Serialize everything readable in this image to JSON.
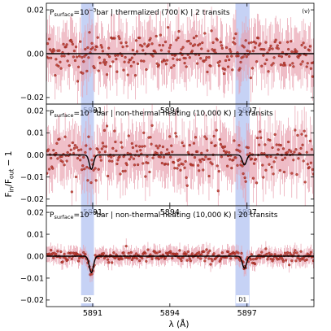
{
  "chart_data": {
    "type": "scatter",
    "panel_corner_label": "(v)",
    "ylabel": {
      "main": "F",
      "sub_in": "in",
      "slash": "/F",
      "sub_out": "out",
      "tail": " − 1"
    },
    "xlabel": "λ (Å)",
    "xlim": [
      5889.2,
      5899.6
    ],
    "xticks": [
      5891,
      5894,
      5897
    ],
    "xtick_labels": [
      "5891",
      "5894",
      "5897"
    ],
    "absorption_bands": [
      {
        "label": "D2",
        "range": [
          5890.55,
          5891.05
        ],
        "center": 5890.95
      },
      {
        "label": "D1",
        "range": [
          5896.55,
          5897.1
        ],
        "center": 5896.9
      }
    ],
    "colors": {
      "points": "#c0392b",
      "point_edge": "#7b1a1a",
      "errorbar": "#e8a0ae",
      "model": "#000000",
      "band": "#b3c3f2"
    },
    "panels": [
      {
        "title_parts": [
          "P",
          "surface",
          "=10",
          "−3",
          "bar | thermalized (700 K) | 2 transits"
        ],
        "ylim": [
          -0.023,
          0.023
        ],
        "yticks": [
          -0.02,
          0.0,
          0.02
        ],
        "ytick_labels": [
          "−0.02",
          "0.00",
          "0.02"
        ],
        "noise_sigma": 0.0048,
        "errorbar_halfwidth": 0.011,
        "model_depths": [
          0.0,
          0.0
        ],
        "show_corner_label": true,
        "show_band_labels": false
      },
      {
        "title_parts": [
          "P",
          "surface",
          "=10",
          "−6",
          "bar | non-thermal heating (10,000 K) | 2 transits"
        ],
        "ylim": [
          -0.023,
          0.023
        ],
        "yticks": [
          -0.02,
          -0.01,
          0.0,
          0.01,
          0.02
        ],
        "ytick_labels": [
          "−0.02",
          "−0.01",
          "0.00",
          "0.01",
          "0.02"
        ],
        "noise_sigma": 0.0048,
        "errorbar_halfwidth": 0.011,
        "model_depths": [
          0.0065,
          0.0045
        ],
        "show_corner_label": false,
        "show_band_labels": false
      },
      {
        "title_parts": [
          "P",
          "surface",
          "=10",
          "−6",
          "bar | non-thermal heating (10,000 K) | 20 transits"
        ],
        "ylim": [
          -0.023,
          0.023
        ],
        "yticks": [
          -0.02,
          -0.01,
          0.0,
          0.01,
          0.02
        ],
        "ytick_labels": [
          "−0.02",
          "−0.01",
          "0.00",
          "0.01",
          "0.02"
        ],
        "noise_sigma": 0.0014,
        "errorbar_halfwidth": 0.0035,
        "model_depths": [
          0.0075,
          0.0055
        ],
        "show_corner_label": false,
        "show_band_labels": true
      }
    ]
  }
}
